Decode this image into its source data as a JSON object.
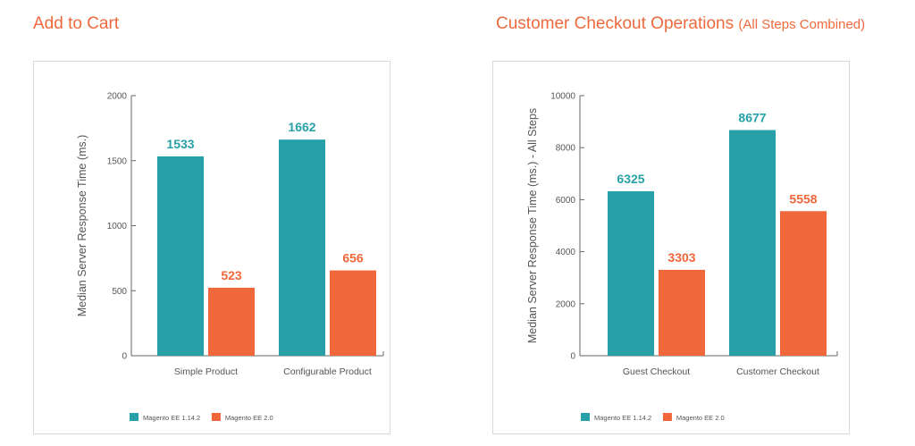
{
  "page": {
    "left_title": "Add to Cart",
    "right_title": "Customer Checkout Operations",
    "right_title_sub": "(All Steps Combined)"
  },
  "colors": {
    "title": "#ee6a3c",
    "series_1": "#27a1a7",
    "series_2": "#ef673a",
    "axis": "#666666"
  },
  "chart_data": [
    {
      "type": "bar",
      "title": "Add to Cart",
      "ylabel": "Median Server Response Time (ms.)",
      "xlabel": "",
      "ylim": [
        0,
        2000
      ],
      "yticks": [
        0,
        500,
        1000,
        1500,
        2000
      ],
      "categories": [
        "Simple Product",
        "Configurable Product"
      ],
      "series": [
        {
          "name": "Magento EE 1.14.2",
          "values": [
            1533,
            1662
          ],
          "color": "#27a1a7"
        },
        {
          "name": "Magento EE 2.0",
          "values": [
            523,
            656
          ],
          "color": "#ef673a"
        }
      ],
      "legend": "bottom-left",
      "grid": false
    },
    {
      "type": "bar",
      "title": "Customer Checkout Operations (All Steps Combined)",
      "ylabel": "Median Server Response Time (ms.) - All Steps",
      "xlabel": "",
      "ylim": [
        0,
        10000
      ],
      "yticks": [
        0,
        2000,
        4000,
        6000,
        8000,
        10000
      ],
      "categories": [
        "Guest Checkout",
        "Customer Checkout"
      ],
      "series": [
        {
          "name": "Magento EE 1.14.2",
          "values": [
            6325,
            8677
          ],
          "color": "#27a1a7"
        },
        {
          "name": "Magento EE 2.0",
          "values": [
            3303,
            5558
          ],
          "color": "#ef673a"
        }
      ],
      "legend": "bottom-left",
      "grid": false
    }
  ]
}
